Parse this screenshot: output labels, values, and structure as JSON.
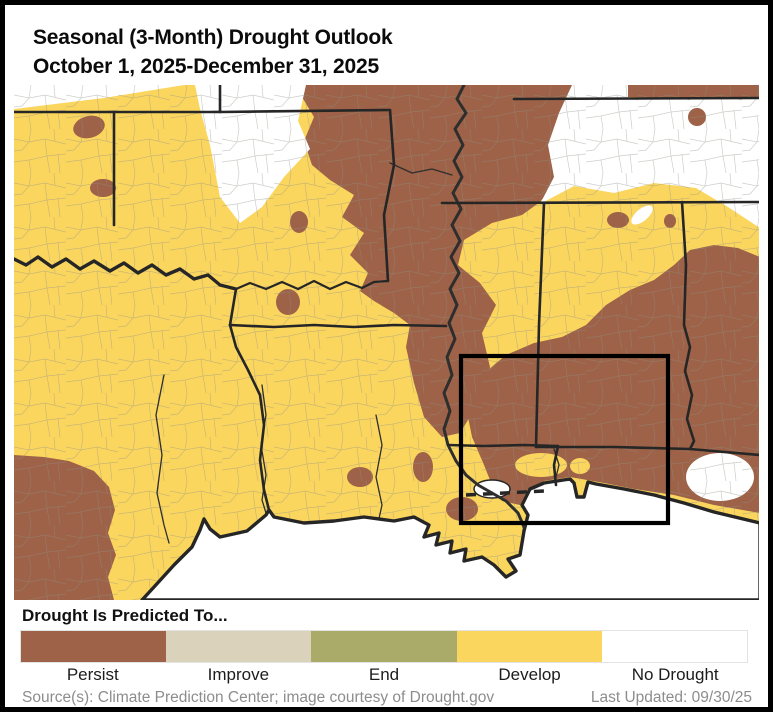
{
  "header": {
    "title_line1": "Seasonal (3-Month) Drought Outlook",
    "title_line2": "October 1, 2025-December 31, 2025"
  },
  "legend": {
    "title": "Drought Is Predicted To...",
    "items": [
      {
        "label": "Persist",
        "color": "#9D6247"
      },
      {
        "label": "Improve",
        "color": "#DBD2BC"
      },
      {
        "label": "End",
        "color": "#ABAB69"
      },
      {
        "label": "Develop",
        "color": "#FBD65F"
      },
      {
        "label": "No Drought",
        "color": "#FFFFFF"
      }
    ]
  },
  "map": {
    "colors": {
      "persist": "#9D6247",
      "develop": "#FBD65F",
      "no_drought": "#FFFFFF",
      "water": "#FFFFFF",
      "state_border": "#262626",
      "county_line": "#8F8F85",
      "focus_box": "#000000"
    },
    "focus_box_present": "true"
  },
  "footer": {
    "source": "Source(s): Climate Prediction Center; image courtesy of Drought.gov",
    "last_updated": "Last Updated: 09/30/25"
  }
}
